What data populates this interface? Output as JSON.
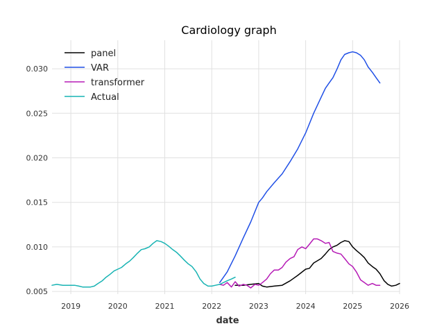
{
  "chart_data": {
    "type": "line",
    "title": "Cardiology graph",
    "xlabel": "date",
    "ylabel": "",
    "xlim": [
      2018.6,
      2026.0
    ],
    "ylim": [
      0.0047,
      0.0332
    ],
    "x_ticks": [
      2019,
      2020,
      2021,
      2022,
      2023,
      2024,
      2025,
      2026
    ],
    "x_tick_labels": [
      "2019",
      "2020",
      "2021",
      "2022",
      "2023",
      "2024",
      "2025",
      "2026"
    ],
    "y_ticks": [
      0.005,
      0.01,
      0.015,
      0.02,
      0.025,
      0.03
    ],
    "y_tick_labels": [
      "0.005",
      "0.010",
      "0.015",
      "0.020",
      "0.025",
      "0.030"
    ],
    "grid": true,
    "legend_position": "top-left",
    "series": [
      {
        "name": "panel",
        "color": "#000000",
        "x": [
          2022.5,
          2022.67,
          2022.83,
          2023.0,
          2023.08,
          2023.17,
          2023.33,
          2023.5,
          2023.67,
          2023.83,
          2024.0,
          2024.08,
          2024.17,
          2024.33,
          2024.42,
          2024.5,
          2024.58,
          2024.67,
          2024.75,
          2024.83,
          2024.92,
          2025.0,
          2025.08,
          2025.17,
          2025.25,
          2025.33,
          2025.42,
          2025.5,
          2025.58,
          2025.67,
          2025.75,
          2025.83,
          2025.92,
          2026.0
        ],
        "values": [
          0.0057,
          0.0057,
          0.0058,
          0.0059,
          0.0056,
          0.0055,
          0.0056,
          0.0057,
          0.0062,
          0.0068,
          0.0075,
          0.0076,
          0.0082,
          0.0087,
          0.0092,
          0.0097,
          0.01,
          0.0102,
          0.0105,
          0.0107,
          0.0106,
          0.01,
          0.0096,
          0.0092,
          0.0088,
          0.0082,
          0.0078,
          0.0075,
          0.007,
          0.0062,
          0.0058,
          0.0056,
          0.0057,
          0.0059
        ]
      },
      {
        "name": "VAR",
        "color": "#1f4fe6",
        "x": [
          2022.17,
          2022.33,
          2022.5,
          2022.67,
          2022.83,
          2023.0,
          2023.08,
          2023.17,
          2023.33,
          2023.5,
          2023.67,
          2023.83,
          2024.0,
          2024.17,
          2024.33,
          2024.42,
          2024.5,
          2024.58,
          2024.67,
          2024.75,
          2024.83,
          2024.92,
          2025.0,
          2025.08,
          2025.17,
          2025.25,
          2025.33,
          2025.42,
          2025.5,
          2025.58
        ],
        "values": [
          0.006,
          0.0072,
          0.009,
          0.011,
          0.0128,
          0.015,
          0.0155,
          0.0162,
          0.0172,
          0.0182,
          0.0196,
          0.021,
          0.0228,
          0.025,
          0.0268,
          0.0278,
          0.0284,
          0.029,
          0.03,
          0.031,
          0.0316,
          0.0318,
          0.0319,
          0.0318,
          0.0315,
          0.031,
          0.0302,
          0.0296,
          0.029,
          0.0284
        ]
      },
      {
        "name": "transformer",
        "color": "#b51ab5",
        "x": [
          2022.17,
          2022.25,
          2022.33,
          2022.42,
          2022.5,
          2022.58,
          2022.67,
          2022.75,
          2022.83,
          2022.92,
          2023.0,
          2023.08,
          2023.17,
          2023.25,
          2023.33,
          2023.42,
          2023.5,
          2023.58,
          2023.67,
          2023.75,
          2023.83,
          2023.92,
          2024.0,
          2024.08,
          2024.17,
          2024.25,
          2024.33,
          2024.42,
          2024.5,
          2024.58,
          2024.67,
          2024.75,
          2024.83,
          2024.92,
          2025.0,
          2025.08,
          2025.17,
          2025.25,
          2025.33,
          2025.42,
          2025.5,
          2025.58
        ],
        "values": [
          0.0058,
          0.0057,
          0.006,
          0.0055,
          0.0061,
          0.0056,
          0.0058,
          0.0057,
          0.0054,
          0.0058,
          0.0057,
          0.006,
          0.0064,
          0.007,
          0.0074,
          0.0074,
          0.0077,
          0.0083,
          0.0087,
          0.0089,
          0.0097,
          0.01,
          0.0098,
          0.0103,
          0.0109,
          0.0109,
          0.0107,
          0.0104,
          0.0105,
          0.0095,
          0.0093,
          0.0092,
          0.0087,
          0.0081,
          0.0078,
          0.0072,
          0.0063,
          0.006,
          0.0057,
          0.0059,
          0.0057,
          0.0057
        ]
      },
      {
        "name": "Actual",
        "color": "#17b3b3",
        "x": [
          2018.6,
          2018.7,
          2018.83,
          2019.0,
          2019.08,
          2019.17,
          2019.25,
          2019.33,
          2019.42,
          2019.5,
          2019.58,
          2019.67,
          2019.75,
          2019.83,
          2019.92,
          2020.0,
          2020.08,
          2020.17,
          2020.25,
          2020.33,
          2020.42,
          2020.5,
          2020.58,
          2020.67,
          2020.75,
          2020.83,
          2020.92,
          2021.0,
          2021.08,
          2021.17,
          2021.25,
          2021.33,
          2021.42,
          2021.5,
          2021.58,
          2021.67,
          2021.75,
          2021.83,
          2021.92,
          2022.0,
          2022.08,
          2022.17,
          2022.25,
          2022.33,
          2022.42,
          2022.5
        ],
        "values": [
          0.0057,
          0.0058,
          0.0057,
          0.0057,
          0.0057,
          0.0056,
          0.0055,
          0.0055,
          0.0055,
          0.0056,
          0.0059,
          0.0062,
          0.0066,
          0.0069,
          0.0073,
          0.0075,
          0.0077,
          0.0081,
          0.0084,
          0.0088,
          0.0093,
          0.0097,
          0.0098,
          0.01,
          0.0104,
          0.0107,
          0.0106,
          0.0104,
          0.0101,
          0.0097,
          0.0094,
          0.009,
          0.0085,
          0.0081,
          0.0078,
          0.0072,
          0.0064,
          0.0059,
          0.0056,
          0.0056,
          0.0057,
          0.0058,
          0.006,
          0.0062,
          0.0064,
          0.0066
        ]
      }
    ]
  }
}
